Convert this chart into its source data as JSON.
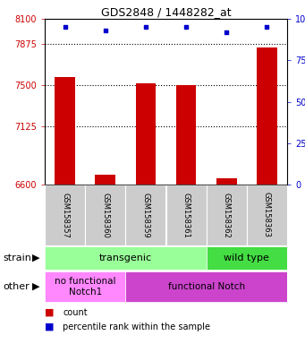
{
  "title": "GDS2848 / 1448282_at",
  "samples": [
    "GSM158357",
    "GSM158360",
    "GSM158359",
    "GSM158361",
    "GSM158362",
    "GSM158363"
  ],
  "counts": [
    7570,
    6690,
    7520,
    7500,
    6660,
    7840
  ],
  "percentiles": [
    95,
    93,
    95,
    95,
    92,
    95
  ],
  "ylim_left": [
    6600,
    8100
  ],
  "yticks_left": [
    6600,
    7125,
    7500,
    7875,
    8100
  ],
  "yticks_right": [
    0,
    25,
    50,
    75,
    100
  ],
  "ylim_right": [
    0,
    100
  ],
  "bar_color": "#cc0000",
  "dot_color": "#0000cc",
  "hline_values": [
    7875,
    7500,
    7125
  ],
  "strain_transgenic_color": "#99ff99",
  "strain_wildtype_color": "#44dd44",
  "other_nofunc_color": "#ff88ff",
  "other_func_color": "#cc44cc",
  "tick_color_left": "#cc0000",
  "tick_color_right": "#0000cc",
  "legend_count_color": "#cc0000",
  "legend_pct_color": "#0000cc"
}
